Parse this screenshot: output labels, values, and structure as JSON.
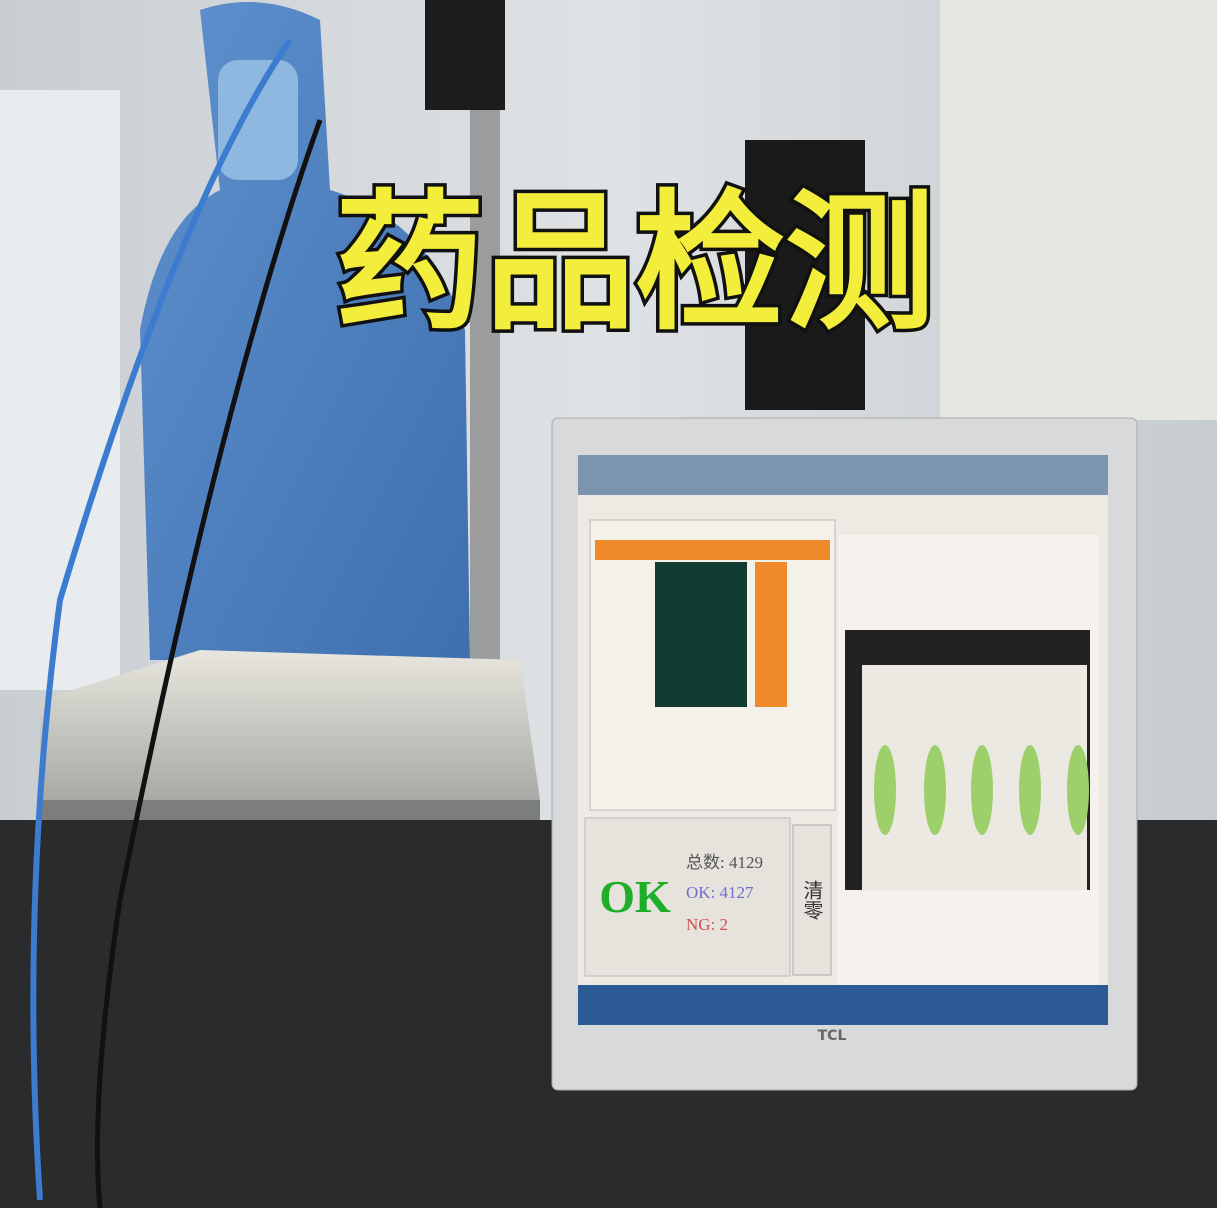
{
  "overlay_title": "药品检测",
  "monitor": {
    "brand": "TCL",
    "screen": {
      "result": "OK",
      "stats": [
        "总数: 4129",
        "OK: 4127",
        "NG: 2"
      ],
      "button": "清零"
    }
  }
}
